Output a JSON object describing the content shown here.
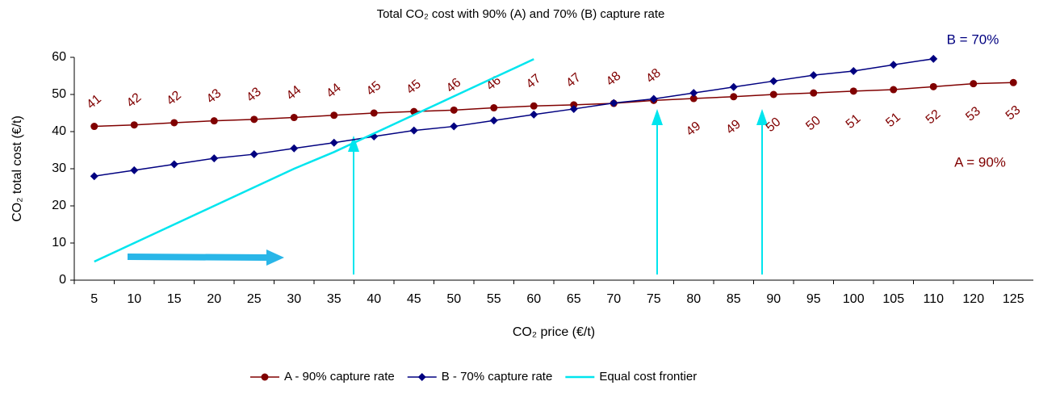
{
  "chart_data": {
    "type": "line",
    "title": "Total CO₂ cost with 90% (A) and 70% (B) capture rate",
    "x_label": "CO₂ price (€/t)",
    "y_label": "CO₂ total cost (€/t)",
    "categories": [
      5,
      10,
      15,
      20,
      25,
      30,
      35,
      40,
      45,
      50,
      55,
      60,
      65,
      70,
      75,
      80,
      85,
      90,
      95,
      100,
      105,
      110,
      120,
      125
    ],
    "ylim": [
      0,
      60
    ],
    "yticks": [
      0,
      10,
      20,
      30,
      40,
      50,
      60
    ],
    "legend": "bottom",
    "series": [
      {
        "name": "A - 90% capture rate",
        "color": "#800000",
        "marker": "circle",
        "values": [
          41.4,
          41.8,
          42.4,
          42.9,
          43.3,
          43.8,
          44.4,
          45.0,
          45.4,
          45.8,
          46.4,
          46.9,
          47.2,
          47.6,
          48.4,
          48.9,
          49.4,
          50.0,
          50.4,
          50.9,
          51.3,
          52.1,
          52.9,
          53.2
        ],
        "value_labels": [
          "41",
          "42",
          "42",
          "43",
          "43",
          "44",
          "44",
          "45",
          "45",
          "46",
          "46",
          "47",
          "47",
          "48",
          "48",
          "49",
          "49",
          "50",
          "50",
          "51",
          "51",
          "52",
          "53",
          "53"
        ]
      },
      {
        "name": "B - 70% capture rate",
        "color": "#000080",
        "marker": "diamond",
        "values": [
          28.0,
          29.6,
          31.2,
          32.8,
          33.9,
          35.5,
          37.0,
          38.7,
          40.3,
          41.4,
          43.0,
          44.6,
          46.1,
          47.7,
          48.8,
          50.4,
          52.0,
          53.6,
          55.2,
          56.3,
          58.0,
          59.6,
          null,
          null
        ]
      },
      {
        "name": "Equal cost frontier",
        "color": "#00e5ee",
        "marker": "none",
        "values": [
          5,
          10,
          15,
          20,
          25,
          30,
          34.5,
          39.5,
          44.5,
          49.5,
          54.5,
          59.5,
          null,
          null,
          null,
          null,
          null,
          null,
          null,
          null,
          null,
          null,
          null,
          null
        ]
      }
    ],
    "annotations": [
      "B = 70%",
      "A = 90%"
    ]
  }
}
